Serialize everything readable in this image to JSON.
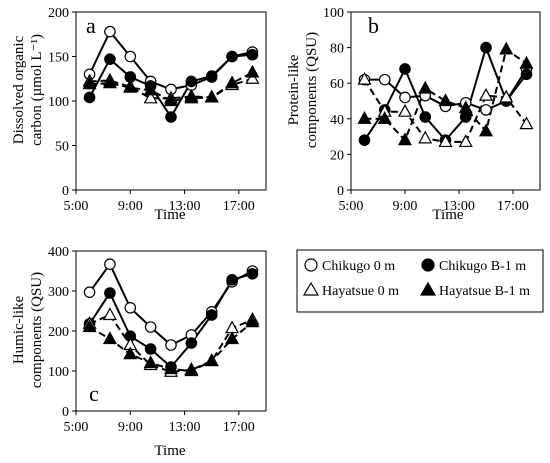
{
  "chart_data": [
    {
      "type": "line",
      "panel_label": "a",
      "xlabel": "Time",
      "ylabel_lines": [
        "Dissolved organic",
        "carbon (µmol L⁻¹)"
      ],
      "xticks": [
        "5:00",
        "9:00",
        "13:00",
        "17:00"
      ],
      "xtick_values": [
        5,
        9,
        13,
        17
      ],
      "xlim": [
        5,
        19
      ],
      "ylim": [
        0,
        200
      ],
      "yticks": [
        0,
        50,
        100,
        150,
        200
      ],
      "series": [
        {
          "name": "Chikugo 0 m",
          "marker": "circle-open",
          "line": "solid",
          "x": [
            6,
            7.5,
            9,
            10.5,
            12,
            13.5,
            15,
            16.5,
            18
          ],
          "y": [
            130,
            178,
            150,
            122,
            113,
            118,
            127,
            150,
            155
          ]
        },
        {
          "name": "Chikugo B-1 m",
          "marker": "circle-filled",
          "line": "solid",
          "x": [
            6,
            7.5,
            9,
            10.5,
            12,
            13.5,
            15,
            16.5,
            18
          ],
          "y": [
            104,
            147,
            127,
            117,
            82,
            122,
            128,
            150,
            152
          ]
        },
        {
          "name": "Hayatsue 0 m",
          "marker": "triangle-open",
          "line": "dash",
          "x": [
            6,
            7.5,
            9,
            10.5,
            12,
            13.5,
            15,
            16.5,
            18
          ],
          "y": [
            122,
            123,
            116,
            103,
            103,
            105,
            104,
            118,
            125
          ]
        },
        {
          "name": "Hayatsue B-1 m",
          "marker": "triangle-filled",
          "line": "dash",
          "x": [
            6,
            7.5,
            9,
            10.5,
            12,
            13.5,
            15,
            16.5,
            18
          ],
          "y": [
            119,
            120,
            115,
            112,
            100,
            103,
            104,
            120,
            132
          ]
        }
      ]
    },
    {
      "type": "line",
      "panel_label": "b",
      "xlabel": "Time",
      "ylabel_lines": [
        "Protein-like",
        "components (QSU)"
      ],
      "xticks": [
        "5:00",
        "9:00",
        "13:00",
        "17:00"
      ],
      "xtick_values": [
        5,
        9,
        13,
        17
      ],
      "xlim": [
        5,
        19
      ],
      "ylim": [
        0,
        100
      ],
      "yticks": [
        0,
        20,
        40,
        60,
        80,
        100
      ],
      "series": [
        {
          "name": "Chikugo 0 m",
          "marker": "circle-open",
          "line": "solid",
          "x": [
            6,
            7.5,
            9,
            10.5,
            12,
            13.5,
            15,
            16.5,
            18
          ],
          "y": [
            62,
            62,
            52,
            53,
            47,
            49,
            45,
            50,
            68
          ]
        },
        {
          "name": "Chikugo B-1 m",
          "marker": "circle-filled",
          "line": "solid",
          "x": [
            6,
            7.5,
            9,
            10.5,
            12,
            13.5,
            15,
            16.5,
            18
          ],
          "y": [
            28,
            45,
            68,
            41,
            28,
            41,
            80,
            50,
            65
          ]
        },
        {
          "name": "Hayatsue 0 m",
          "marker": "triangle-open",
          "line": "dash",
          "x": [
            6,
            7.5,
            9,
            10.5,
            12,
            13.5,
            15,
            16.5,
            18
          ],
          "y": [
            62,
            44,
            44,
            29,
            27,
            27,
            53,
            52,
            37
          ]
        },
        {
          "name": "Hayatsue B-1 m",
          "marker": "triangle-filled",
          "line": "dash",
          "x": [
            6,
            7.5,
            9,
            10.5,
            12,
            13.5,
            15,
            16.5,
            18
          ],
          "y": [
            40,
            40,
            28,
            57,
            50,
            46,
            33,
            79,
            71
          ]
        }
      ]
    },
    {
      "type": "line",
      "panel_label": "c",
      "xlabel": "Time",
      "ylabel_lines": [
        "Humic-like",
        "components (QSU)"
      ],
      "xticks": [
        "5:00",
        "9:00",
        "13:00",
        "17:00"
      ],
      "xtick_values": [
        5,
        9,
        13,
        17
      ],
      "xlim": [
        5,
        19
      ],
      "ylim": [
        0,
        400
      ],
      "yticks": [
        0,
        100,
        200,
        300,
        400
      ],
      "series": [
        {
          "name": "Chikugo 0 m",
          "marker": "circle-open",
          "line": "solid",
          "x": [
            6,
            7.5,
            9,
            10.5,
            12,
            13.5,
            15,
            16.5,
            18
          ],
          "y": [
            297,
            367,
            258,
            210,
            165,
            190,
            248,
            323,
            350
          ]
        },
        {
          "name": "Chikugo B-1 m",
          "marker": "circle-filled",
          "line": "solid",
          "x": [
            6,
            7.5,
            9,
            10.5,
            12,
            13.5,
            15,
            16.5,
            18
          ],
          "y": [
            218,
            295,
            187,
            155,
            110,
            170,
            240,
            328,
            343
          ]
        },
        {
          "name": "Hayatsue 0 m",
          "marker": "triangle-open",
          "line": "dash",
          "x": [
            6,
            7.5,
            9,
            10.5,
            12,
            13.5,
            15,
            16.5,
            18
          ],
          "y": [
            218,
            240,
            165,
            115,
            98,
            103,
            125,
            207,
            228
          ]
        },
        {
          "name": "Hayatsue B-1 m",
          "marker": "triangle-filled",
          "line": "dash",
          "x": [
            6,
            7.5,
            9,
            10.5,
            12,
            13.5,
            15,
            16.5,
            18
          ],
          "y": [
            210,
            180,
            142,
            120,
            105,
            100,
            125,
            180,
            222
          ]
        }
      ]
    }
  ],
  "legend": {
    "entries": [
      {
        "name": "Chikugo 0 m",
        "marker": "circle-open"
      },
      {
        "name": "Chikugo B-1 m",
        "marker": "circle-filled"
      },
      {
        "name": "Hayatsue 0 m",
        "marker": "triangle-open"
      },
      {
        "name": "Hayatsue B-1 m",
        "marker": "triangle-filled"
      }
    ]
  }
}
